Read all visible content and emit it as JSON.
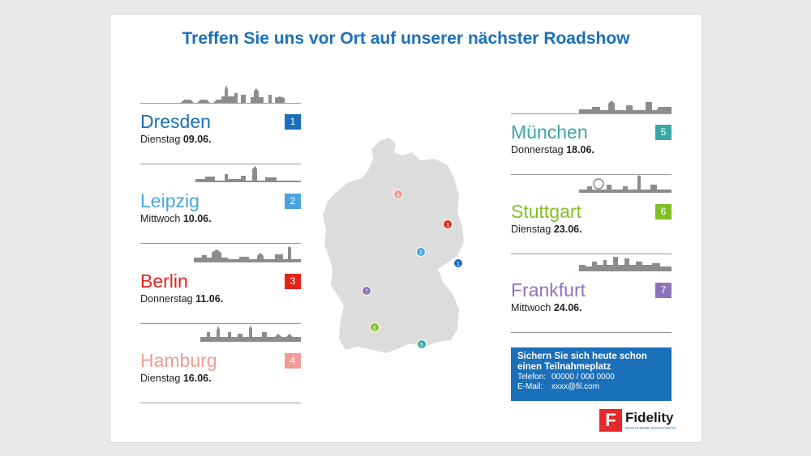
{
  "title": "Treffen Sie uns vor Ort auf unserer nächster Roadshow",
  "cities": [
    {
      "num": "1",
      "name": "Dresden",
      "day": "Dienstag",
      "date": "09.06.",
      "color": "#1a70b9"
    },
    {
      "num": "2",
      "name": "Leipzig",
      "day": "Mittwoch",
      "date": "10.06.",
      "color": "#4aa3dd"
    },
    {
      "num": "3",
      "name": "Berlin",
      "day": "Donnerstag",
      "date": "11.06.",
      "color": "#e3241d"
    },
    {
      "num": "4",
      "name": "Hamburg",
      "day": "Dienstag ",
      "date": "16.06.",
      "color": "#f09b93"
    },
    {
      "num": "5",
      "name": "München",
      "day": "Donnerstag",
      "date": "18.06.",
      "color": "#3aa7a5"
    },
    {
      "num": "6",
      "name": "Stuttgart",
      "day": "Dienstag",
      "date": "23.06.",
      "color": "#84be27"
    },
    {
      "num": "7",
      "name": "Frankfurt",
      "day": "Mittwoch",
      "date": "24.06.",
      "color": "#8b74bc"
    }
  ],
  "cta": {
    "headline": "Sichern Sie sich heute schon einen  Teilnahmeplatz",
    "phone_label": "Telefon:",
    "phone": "00000 / 000 0000",
    "email_label": "E-Mail:",
    "email": "xxxx@fil.com"
  },
  "logo": {
    "mark": "F",
    "name": "Fidelity",
    "tagline": "WORLDWIDE INVESTMENT",
    "tm": "TM"
  },
  "map_markers": [
    "1",
    "2",
    "3",
    "4",
    "5",
    "6",
    "7"
  ],
  "colors": {
    "title": "#1a70b9",
    "map": "#dcdcdc",
    "skyline": "#8c8c8c",
    "cta": "#1a70b9",
    "logo": "#e4282b"
  }
}
